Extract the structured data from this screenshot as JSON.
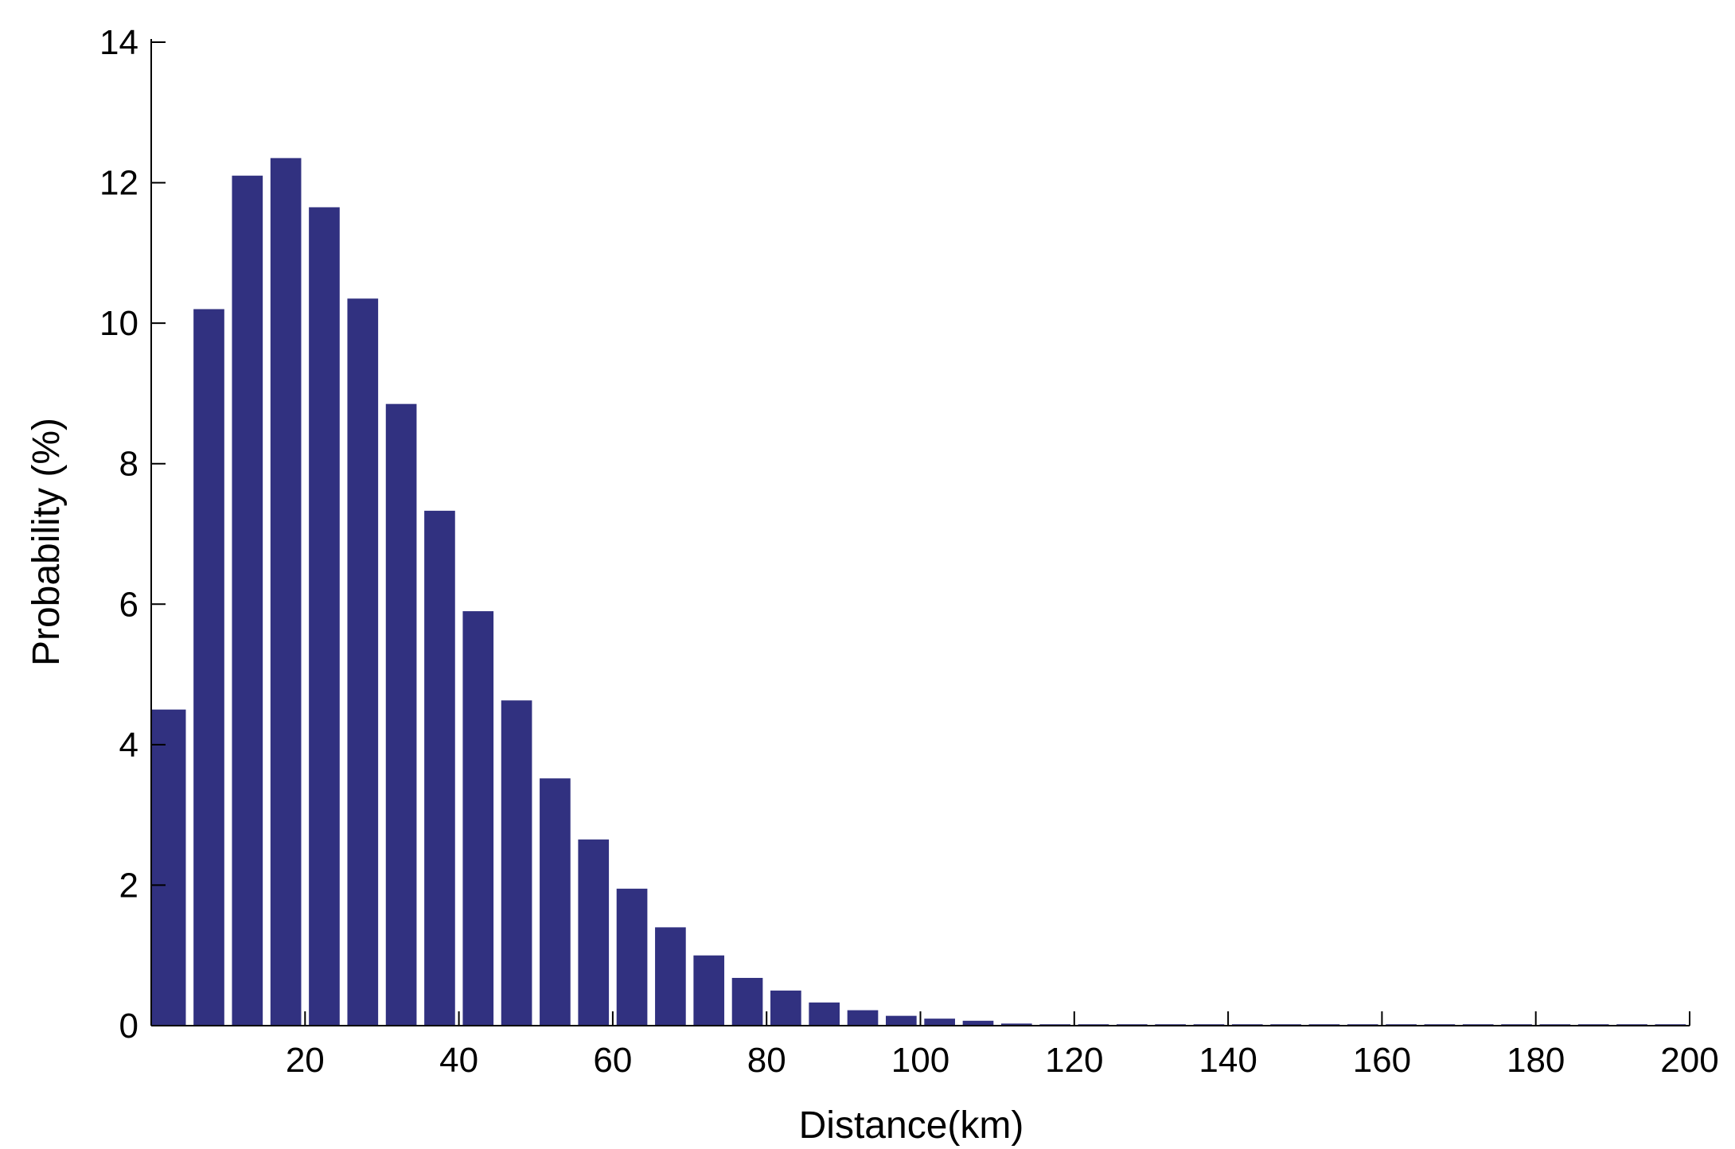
{
  "chart_data": {
    "type": "bar",
    "title": "",
    "xlabel": "Distance(km)",
    "ylabel": "Probability (%)",
    "xlim": [
      0,
      200
    ],
    "ylim": [
      0,
      14
    ],
    "x_ticks": [
      20,
      40,
      60,
      80,
      100,
      120,
      140,
      160,
      180,
      200
    ],
    "y_ticks": [
      0,
      2,
      4,
      6,
      8,
      10,
      12,
      14
    ],
    "bar_color": "#313180",
    "bin_width": 5,
    "x": [
      0,
      5,
      10,
      15,
      20,
      25,
      30,
      35,
      40,
      45,
      50,
      55,
      60,
      65,
      70,
      75,
      80,
      85,
      90,
      95,
      100,
      105,
      110,
      115,
      120,
      125,
      130,
      135,
      140,
      145,
      150,
      155,
      160,
      165,
      170,
      175,
      180,
      185,
      190,
      195
    ],
    "values": [
      4.5,
      10.2,
      12.1,
      12.35,
      11.65,
      10.35,
      8.85,
      7.33,
      5.9,
      4.63,
      3.52,
      2.65,
      1.95,
      1.4,
      1.0,
      0.68,
      0.5,
      0.33,
      0.22,
      0.14,
      0.1,
      0.07,
      0.03,
      0.02,
      0.02,
      0.02,
      0.02,
      0.02,
      0.02,
      0.02,
      0.02,
      0.02,
      0.02,
      0.02,
      0.02,
      0.02,
      0.02,
      0.02,
      0.02,
      0.02
    ],
    "grid": false,
    "legend": "none"
  }
}
